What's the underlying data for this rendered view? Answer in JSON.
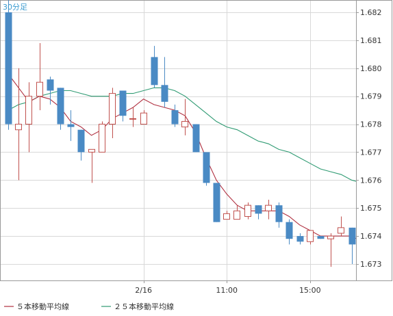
{
  "chart_data": {
    "type": "candlestick",
    "timeframe_label": "30分足",
    "y_ticks": [
      1.673,
      1.674,
      1.675,
      1.676,
      1.677,
      1.678,
      1.679,
      1.68,
      1.681,
      1.682
    ],
    "y_tick_labels": [
      "1.673",
      "1.674",
      "1.675",
      "1.676",
      "1.677",
      "1.678",
      "1.679",
      "1.680",
      "1.681",
      "1.682"
    ],
    "ylim": [
      1.6725,
      1.6825
    ],
    "x_tick_labels": [
      {
        "index": 13,
        "label": "2/16"
      },
      {
        "index": 21,
        "label": "11:00"
      },
      {
        "index": 29,
        "label": "15:00"
      }
    ],
    "grid": true,
    "colors": {
      "up_border": "#c0504d",
      "down_fill": "#4a8ac4",
      "ma5": "#b03040",
      "ma25": "#2e9a72",
      "grid": "#d8d8d8",
      "border": "#999999",
      "label": "#3a9bd0"
    },
    "candles": [
      {
        "o": 1.682,
        "h": 1.6825,
        "l": 1.6778,
        "c": 1.678
      },
      {
        "o": 1.6778,
        "h": 1.68,
        "l": 1.676,
        "c": 1.678
      },
      {
        "o": 1.678,
        "h": 1.6795,
        "l": 1.677,
        "c": 1.679
      },
      {
        "o": 1.679,
        "h": 1.6809,
        "l": 1.6785,
        "c": 1.6795
      },
      {
        "o": 1.6796,
        "h": 1.6797,
        "l": 1.6787,
        "c": 1.6792
      },
      {
        "o": 1.6793,
        "h": 1.6793,
        "l": 1.6778,
        "c": 1.678
      },
      {
        "o": 1.678,
        "h": 1.6785,
        "l": 1.6774,
        "c": 1.6779
      },
      {
        "o": 1.6778,
        "h": 1.6778,
        "l": 1.6767,
        "c": 1.677
      },
      {
        "o": 1.677,
        "h": 1.6771,
        "l": 1.6759,
        "c": 1.6771
      },
      {
        "o": 1.677,
        "h": 1.6781,
        "l": 1.677,
        "c": 1.678
      },
      {
        "o": 1.678,
        "h": 1.6793,
        "l": 1.6775,
        "c": 1.6791
      },
      {
        "o": 1.6792,
        "h": 1.6792,
        "l": 1.6781,
        "c": 1.6783
      },
      {
        "o": 1.6782,
        "h": 1.6786,
        "l": 1.6779,
        "c": 1.6782
      },
      {
        "o": 1.678,
        "h": 1.6785,
        "l": 1.678,
        "c": 1.6784
      },
      {
        "o": 1.6804,
        "h": 1.6808,
        "l": 1.6793,
        "c": 1.6794
      },
      {
        "o": 1.6794,
        "h": 1.6804,
        "l": 1.6786,
        "c": 1.6788
      },
      {
        "o": 1.6785,
        "h": 1.6787,
        "l": 1.6779,
        "c": 1.678
      },
      {
        "o": 1.6779,
        "h": 1.6789,
        "l": 1.6776,
        "c": 1.6781
      },
      {
        "o": 1.678,
        "h": 1.678,
        "l": 1.677,
        "c": 1.677
      },
      {
        "o": 1.677,
        "h": 1.677,
        "l": 1.6758,
        "c": 1.6759
      },
      {
        "o": 1.6759,
        "h": 1.6759,
        "l": 1.6745,
        "c": 1.6745
      },
      {
        "o": 1.6746,
        "h": 1.6749,
        "l": 1.6746,
        "c": 1.6748
      },
      {
        "o": 1.6746,
        "h": 1.6751,
        "l": 1.6746,
        "c": 1.6749
      },
      {
        "o": 1.6747,
        "h": 1.6752,
        "l": 1.6746,
        "c": 1.6751
      },
      {
        "o": 1.6751,
        "h": 1.6751,
        "l": 1.6746,
        "c": 1.6748
      },
      {
        "o": 1.6749,
        "h": 1.6753,
        "l": 1.6746,
        "c": 1.6751
      },
      {
        "o": 1.6751,
        "h": 1.6752,
        "l": 1.6743,
        "c": 1.6745
      },
      {
        "o": 1.6745,
        "h": 1.6746,
        "l": 1.6737,
        "c": 1.6739
      },
      {
        "o": 1.674,
        "h": 1.6741,
        "l": 1.6737,
        "c": 1.6738
      },
      {
        "o": 1.6738,
        "h": 1.6742,
        "l": 1.6737,
        "c": 1.6742
      },
      {
        "o": 1.674,
        "h": 1.674,
        "l": 1.6739,
        "c": 1.6739
      },
      {
        "o": 1.6739,
        "h": 1.6741,
        "l": 1.6729,
        "c": 1.674
      },
      {
        "o": 1.6741,
        "h": 1.6747,
        "l": 1.674,
        "c": 1.6743
      },
      {
        "o": 1.6743,
        "h": 1.6743,
        "l": 1.673,
        "c": 1.6737
      },
      {
        "o": 1.6734,
        "h": 1.6738,
        "l": 1.673,
        "c": 1.6731
      }
    ],
    "ma5": [
      1.6798,
      1.6793,
      1.6788,
      1.679,
      1.6789,
      1.6786,
      1.6781,
      1.6779,
      1.6776,
      1.6778,
      1.6782,
      1.6784,
      1.6786,
      1.6789,
      1.6787,
      1.6786,
      1.6785,
      1.6783,
      1.6777,
      1.6768,
      1.676,
      1.6755,
      1.6751,
      1.6749,
      1.6749,
      1.6749,
      1.6749,
      1.6747,
      1.6744,
      1.6742,
      1.674,
      1.674,
      1.674,
      1.674,
      1.6738
    ],
    "ma25": [
      1.6785,
      1.6787,
      1.6788,
      1.679,
      1.6791,
      1.6792,
      1.6792,
      1.6791,
      1.679,
      1.679,
      1.679,
      1.6791,
      1.6791,
      1.6792,
      1.6793,
      1.6793,
      1.6792,
      1.679,
      1.6787,
      1.6784,
      1.6781,
      1.6779,
      1.6778,
      1.6776,
      1.6774,
      1.6773,
      1.6771,
      1.677,
      1.6768,
      1.6766,
      1.6764,
      1.6763,
      1.6762,
      1.676,
      1.6759
    ],
    "legend": [
      {
        "label": "５本移動平均線",
        "color": "#b03040"
      },
      {
        "label": "２５本移動平均線",
        "color": "#2e9a72"
      }
    ]
  }
}
